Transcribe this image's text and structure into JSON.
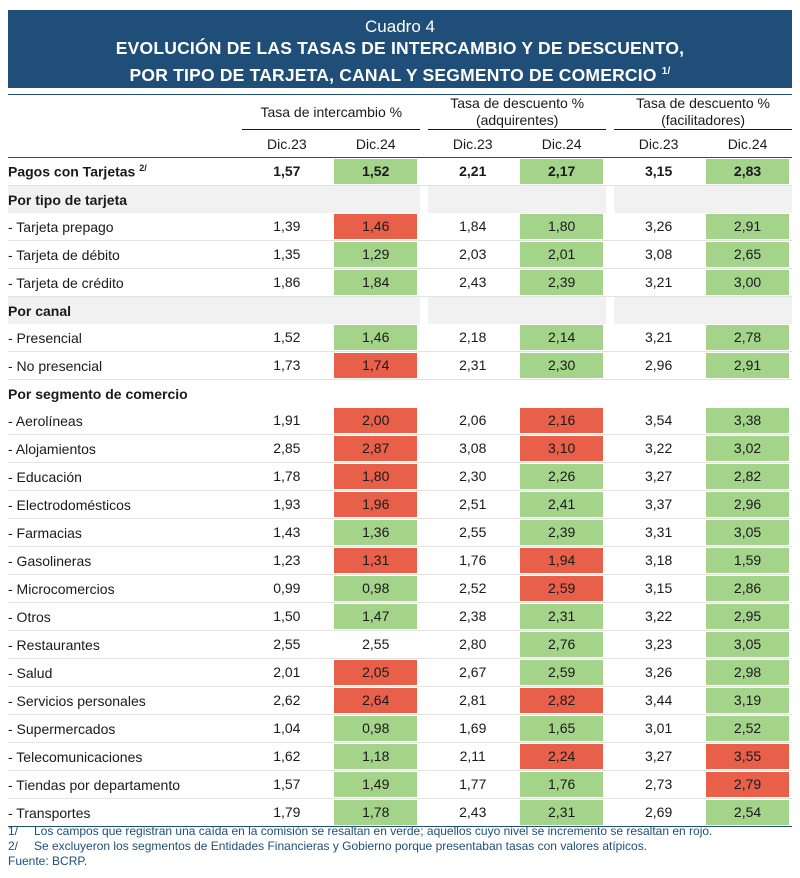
{
  "title": {
    "caption": "Cuadro 4",
    "line1": "EVOLUCIÓN DE LAS TASAS DE INTERCAMBIO Y DE DESCUENTO,",
    "line2": "POR TIPO DE TARJETA, CANAL Y SEGMENTO DE COMERCIO",
    "note_ref": "1/"
  },
  "headers": {
    "g1": "Tasa de intercambio %",
    "g2_a": "Tasa de descuento %",
    "g2_b": "(adquirentes)",
    "g3_a": "Tasa de descuento %",
    "g3_b": "(facilitadores)",
    "dic23": "Dic.23",
    "dic24": "Dic.24"
  },
  "colors": {
    "green": "#a4d38a",
    "red": "#e8604a",
    "title_bg": "#1f4e79"
  },
  "rows": [
    {
      "type": "total",
      "label": "Pagos con Tarjetas",
      "sup": "2/",
      "v": [
        "1,57",
        "1,52",
        "2,21",
        "2,17",
        "3,15",
        "2,83"
      ],
      "c": [
        "",
        "g",
        "",
        "g",
        "",
        "g"
      ]
    },
    {
      "type": "section",
      "label": "Por tipo de tarjeta"
    },
    {
      "type": "row",
      "label": "- Tarjeta prepago",
      "v": [
        "1,39",
        "1,46",
        "1,84",
        "1,80",
        "3,26",
        "2,91"
      ],
      "c": [
        "",
        "r",
        "",
        "g",
        "",
        "g"
      ]
    },
    {
      "type": "row",
      "label": "- Tarjeta de débito",
      "v": [
        "1,35",
        "1,29",
        "2,03",
        "2,01",
        "3,08",
        "2,65"
      ],
      "c": [
        "",
        "g",
        "",
        "g",
        "",
        "g"
      ]
    },
    {
      "type": "row",
      "label": "- Tarjeta de crédito",
      "v": [
        "1,86",
        "1,84",
        "2,43",
        "2,39",
        "3,21",
        "3,00"
      ],
      "c": [
        "",
        "g",
        "",
        "g",
        "",
        "g"
      ]
    },
    {
      "type": "section",
      "label": "Por canal"
    },
    {
      "type": "row",
      "label": "- Presencial",
      "v": [
        "1,52",
        "1,46",
        "2,18",
        "2,14",
        "3,21",
        "2,78"
      ],
      "c": [
        "",
        "g",
        "",
        "g",
        "",
        "g"
      ]
    },
    {
      "type": "row",
      "label": "- No presencial",
      "v": [
        "1,73",
        "1,74",
        "2,31",
        "2,30",
        "2,96",
        "2,91"
      ],
      "c": [
        "",
        "r",
        "",
        "g",
        "",
        "g"
      ]
    },
    {
      "type": "section",
      "label": "Por segmento de comercio"
    },
    {
      "type": "row",
      "label": "- Aerolíneas",
      "v": [
        "1,91",
        "2,00",
        "2,06",
        "2,16",
        "3,54",
        "3,38"
      ],
      "c": [
        "",
        "r",
        "",
        "r",
        "",
        "g"
      ]
    },
    {
      "type": "row",
      "label": "- Alojamientos",
      "v": [
        "2,85",
        "2,87",
        "3,08",
        "3,10",
        "3,22",
        "3,02"
      ],
      "c": [
        "",
        "r",
        "",
        "r",
        "",
        "g"
      ]
    },
    {
      "type": "row",
      "label": "- Educación",
      "v": [
        "1,78",
        "1,80",
        "2,30",
        "2,26",
        "3,27",
        "2,82"
      ],
      "c": [
        "",
        "r",
        "",
        "g",
        "",
        "g"
      ]
    },
    {
      "type": "row",
      "label": "- Electrodomésticos",
      "v": [
        "1,93",
        "1,96",
        "2,51",
        "2,41",
        "3,37",
        "2,96"
      ],
      "c": [
        "",
        "r",
        "",
        "g",
        "",
        "g"
      ]
    },
    {
      "type": "row",
      "label": "- Farmacias",
      "v": [
        "1,43",
        "1,36",
        "2,55",
        "2,39",
        "3,31",
        "3,05"
      ],
      "c": [
        "",
        "g",
        "",
        "g",
        "",
        "g"
      ]
    },
    {
      "type": "row",
      "label": "- Gasolineras",
      "v": [
        "1,23",
        "1,31",
        "1,76",
        "1,94",
        "3,18",
        "1,59"
      ],
      "c": [
        "",
        "r",
        "",
        "r",
        "",
        "g"
      ]
    },
    {
      "type": "row",
      "label": "- Microcomercios",
      "v": [
        "0,99",
        "0,98",
        "2,52",
        "2,59",
        "3,15",
        "2,86"
      ],
      "c": [
        "",
        "g",
        "",
        "r",
        "",
        "g"
      ]
    },
    {
      "type": "row",
      "label": "- Otros",
      "v": [
        "1,50",
        "1,47",
        "2,38",
        "2,31",
        "3,22",
        "2,95"
      ],
      "c": [
        "",
        "g",
        "",
        "g",
        "",
        "g"
      ]
    },
    {
      "type": "row",
      "label": "- Restaurantes",
      "v": [
        "2,55",
        "2,55",
        "2,80",
        "2,76",
        "3,23",
        "3,05"
      ],
      "c": [
        "",
        "",
        "",
        "g",
        "",
        "g"
      ]
    },
    {
      "type": "row",
      "label": "- Salud",
      "v": [
        "2,01",
        "2,05",
        "2,67",
        "2,59",
        "3,26",
        "2,98"
      ],
      "c": [
        "",
        "r",
        "",
        "g",
        "",
        "g"
      ]
    },
    {
      "type": "row",
      "label": "- Servicios personales",
      "v": [
        "2,62",
        "2,64",
        "2,81",
        "2,82",
        "3,44",
        "3,19"
      ],
      "c": [
        "",
        "r",
        "",
        "r",
        "",
        "g"
      ]
    },
    {
      "type": "row",
      "label": "- Supermercados",
      "v": [
        "1,04",
        "0,98",
        "1,69",
        "1,65",
        "3,01",
        "2,52"
      ],
      "c": [
        "",
        "g",
        "",
        "g",
        "",
        "g"
      ]
    },
    {
      "type": "row",
      "label": "- Telecomunicaciones",
      "v": [
        "1,62",
        "1,18",
        "2,11",
        "2,24",
        "3,27",
        "3,55"
      ],
      "c": [
        "",
        "g",
        "",
        "r",
        "",
        "r"
      ]
    },
    {
      "type": "row",
      "label": "- Tiendas por departamento",
      "v": [
        "1,57",
        "1,49",
        "1,77",
        "1,76",
        "2,73",
        "2,79"
      ],
      "c": [
        "",
        "g",
        "",
        "g",
        "",
        "r"
      ]
    },
    {
      "type": "row",
      "label": "- Transportes",
      "v": [
        "1,79",
        "1,78",
        "2,43",
        "2,31",
        "2,69",
        "2,54"
      ],
      "c": [
        "",
        "g",
        "",
        "g",
        "",
        "g"
      ]
    }
  ],
  "notes": [
    {
      "key": "1/",
      "text": "Los campos que registran una caída en la comisión se resaltan en verde; aquellos cuyo nivel se incremento se resaltan en rojo."
    },
    {
      "key": "2/",
      "text": "Se excluyeron los segmentos de Entidades Financieras y Gobierno porque presentaban tasas con valores atípicos."
    }
  ],
  "source": "Fuente: BCRP."
}
